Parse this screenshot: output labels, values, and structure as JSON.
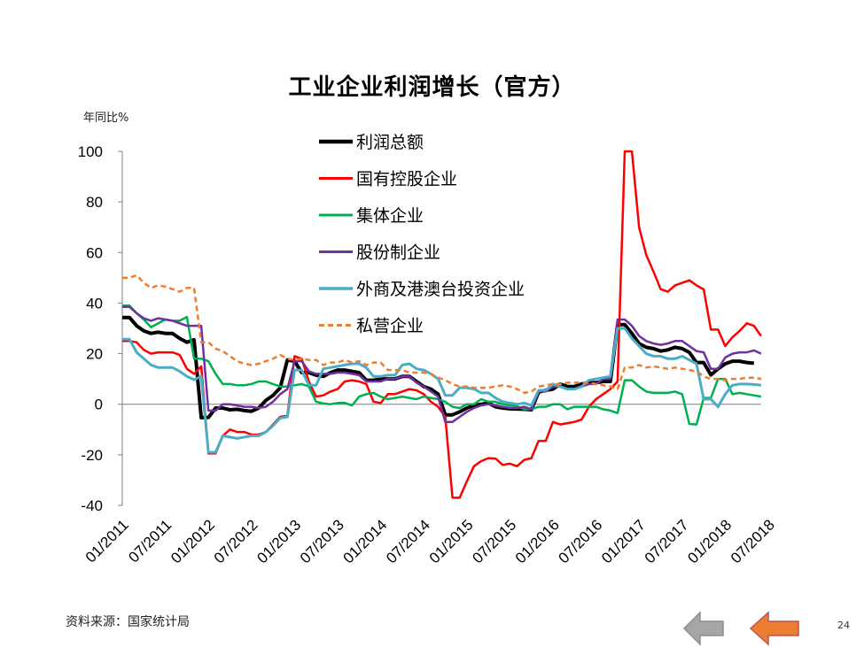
{
  "title": "工业企业利润增长（官方）",
  "unit_label": "年同比%",
  "source": "资料来源：国家统计局",
  "page_number": "24",
  "nav": {
    "back_icon": "arrow-left-gray-icon",
    "next_icon": "arrow-left-orange-icon",
    "back_color": "#a6a6a6",
    "next_color": "#ed7d31"
  },
  "chart_data": {
    "type": "line",
    "ylim": [
      -40,
      100
    ],
    "yticks": [
      100,
      80,
      60,
      40,
      20,
      0,
      -20,
      -40
    ],
    "x_tick_labels": [
      "01/2011",
      "07/2011",
      "01/2012",
      "07/2012",
      "01/2013",
      "07/2013",
      "01/2014",
      "07/2014",
      "01/2015",
      "07/2015",
      "01/2016",
      "07/2016",
      "01/2017",
      "07/2017",
      "01/2018",
      "07/2018"
    ],
    "x_start": "01/2011",
    "legend_position": "top-center",
    "series": [
      {
        "name": "利润总额",
        "color": "#000000",
        "width": 4,
        "dash": "",
        "values": [
          34.3,
          34.3,
          31,
          29,
          28,
          28.5,
          28,
          28,
          26,
          24.5,
          25.5,
          -5.3,
          -5.2,
          -1.5,
          -1.5,
          -2.2,
          -2,
          -2.5,
          -2.8,
          -1.5,
          1.5,
          3.5,
          6.5,
          17.5,
          17,
          12.5,
          12.5,
          11.5,
          11,
          12.5,
          13.5,
          13.5,
          13,
          12.5,
          9.5,
          9.5,
          10,
          10,
          10,
          11,
          11,
          9,
          7,
          6,
          4,
          -4.2,
          -4.2,
          -3,
          -1.5,
          -0.5,
          0,
          0.5,
          -1,
          -1.5,
          -1.8,
          -1.9,
          -2,
          -2.2,
          4.8,
          5.5,
          6,
          8,
          7,
          7,
          8,
          8.5,
          8.5,
          9,
          9,
          31.5,
          31.5,
          28,
          24,
          22.5,
          22,
          21,
          21.5,
          22.5,
          22,
          20.5,
          16.5,
          16.5,
          11.6,
          14,
          16,
          17,
          17,
          16.5,
          16.2
        ]
      },
      {
        "name": "国有控股企业",
        "color": "#ff0000",
        "width": 2.5,
        "dash": "",
        "values": [
          25,
          25,
          24.5,
          21.5,
          20,
          20.5,
          20.5,
          20.5,
          19.5,
          14,
          12,
          15,
          -19.5,
          -19.5,
          -12.5,
          -10,
          -11,
          -11,
          -12,
          -12,
          -11,
          -8,
          -5,
          -4.5,
          19,
          18,
          9,
          3,
          3.5,
          5,
          6,
          9,
          9.5,
          9,
          8,
          1,
          0.5,
          4,
          4,
          5,
          6,
          5.5,
          4,
          1,
          -1,
          -5,
          -37,
          -37,
          -30.5,
          -24.5,
          -22.5,
          -21.3,
          -21.5,
          -24,
          -23.5,
          -24.5,
          -22,
          -21.3,
          -14.5,
          -14.5,
          -7,
          -8,
          -7.5,
          -7,
          -6,
          -1,
          2,
          4,
          6,
          9,
          100,
          100,
          70,
          59,
          52.5,
          45.5,
          44.5,
          47,
          48,
          49,
          47,
          45.4,
          29.5,
          29.5,
          23,
          26.5,
          29,
          32,
          31,
          27
        ]
      },
      {
        "name": "集体企业",
        "color": "#00b050",
        "width": 2.5,
        "dash": "",
        "values": [
          39,
          39,
          36,
          33.5,
          30.5,
          32,
          33.5,
          33,
          33,
          34.5,
          18,
          18,
          17,
          12,
          8,
          8,
          7.5,
          7.5,
          8,
          9,
          9,
          8,
          7,
          7,
          7.5,
          8,
          7,
          1,
          0.3,
          0,
          0.5,
          0.5,
          -0.5,
          3,
          4,
          4.5,
          3,
          2,
          2.5,
          3,
          2.5,
          2,
          3,
          2.5,
          2,
          1,
          -1,
          -1.5,
          0,
          0,
          2,
          1,
          1,
          0,
          -0.5,
          -0.8,
          -2,
          -2,
          -1,
          -1,
          0,
          0,
          -2,
          -1,
          -1,
          -1,
          -1,
          -2,
          -2.5,
          -3.5,
          9.5,
          9.5,
          7,
          5,
          4.5,
          4.5,
          4.5,
          5,
          4,
          -7.8,
          -8,
          2.5,
          2.5,
          10,
          10,
          4,
          4.5,
          4,
          3.5,
          3
        ]
      },
      {
        "name": "股份制企业",
        "color": "#7030a0",
        "width": 2.5,
        "dash": "",
        "values": [
          38.5,
          38.5,
          36,
          34,
          33,
          34,
          33.5,
          33,
          32,
          31,
          31,
          31,
          -2.5,
          -2.5,
          0,
          0,
          -0.5,
          -1,
          -1,
          -1.5,
          -1,
          1,
          4,
          6,
          17,
          17,
          13,
          12,
          12,
          12,
          12.5,
          12.5,
          12,
          11.5,
          9,
          9,
          9,
          10,
          10,
          11,
          11,
          8.5,
          7,
          5,
          3,
          -7,
          -7,
          -5,
          -3,
          -1.5,
          -0.5,
          0,
          -0.5,
          -1,
          -1.5,
          -1.5,
          -1,
          -2,
          5,
          5,
          7,
          7,
          6,
          6,
          7,
          8,
          8,
          10,
          10,
          33.5,
          33.5,
          31,
          27,
          25,
          24,
          23.5,
          24,
          25,
          25,
          23,
          21,
          20.5,
          14,
          14,
          18.5,
          20,
          20.5,
          20.5,
          21.3,
          20
        ]
      },
      {
        "name": "外商及港澳台投资企业",
        "color": "#4bacc6",
        "width": 3,
        "dash": "",
        "values": [
          25.7,
          25.7,
          20.5,
          18,
          15.5,
          14.5,
          14.5,
          14.5,
          13,
          11,
          9.7,
          11,
          -19,
          -19,
          -12.5,
          -13,
          -13.5,
          -13,
          -12.5,
          -12.5,
          -11,
          -8.5,
          -5.5,
          -5,
          13.5,
          13.5,
          7.5,
          7.5,
          14,
          14.5,
          15,
          15.5,
          16,
          16,
          14.5,
          11,
          11,
          11.5,
          11.5,
          15.5,
          16,
          14,
          13.5,
          12,
          10,
          3.5,
          3.5,
          6.5,
          6.5,
          6,
          4.5,
          4.5,
          2.5,
          1,
          0.5,
          0,
          0.5,
          -0.5,
          5.5,
          5.5,
          8,
          7,
          6,
          6,
          7,
          9.5,
          10,
          10.5,
          11,
          30,
          30,
          26,
          23,
          20,
          19,
          19,
          18,
          18,
          19,
          17.5,
          16,
          2,
          2,
          -1,
          4,
          7.5,
          8,
          8,
          7.8,
          7.5
        ]
      },
      {
        "name": "私营企业",
        "color": "#ed7d31",
        "width": 2.5,
        "dash": "6,4",
        "values": [
          50,
          50,
          51,
          48,
          46,
          47,
          46.5,
          45.5,
          44.5,
          46,
          46,
          24.5,
          24.5,
          22,
          21,
          19,
          17,
          16,
          15.5,
          16,
          17,
          18,
          19.5,
          18,
          17.5,
          18,
          17.5,
          17.5,
          15.5,
          16.5,
          16.5,
          17.5,
          16.5,
          17,
          15.5,
          16.5,
          16.5,
          13.5,
          13.5,
          13.5,
          12.5,
          12.5,
          12.5,
          12,
          10.5,
          9.5,
          8,
          7,
          7,
          6.5,
          6.5,
          6.5,
          7,
          7.5,
          7,
          6,
          4.5,
          5,
          7,
          7.5,
          8,
          8,
          8.5,
          8.5,
          8.5,
          8.5,
          8,
          7.5,
          7,
          6,
          14.5,
          14.5,
          15.5,
          14.5,
          15,
          14.5,
          14,
          14.5,
          14,
          13.5,
          13,
          11,
          10,
          10,
          9.5,
          10,
          10,
          10.5,
          10.5,
          10
        ]
      }
    ]
  }
}
